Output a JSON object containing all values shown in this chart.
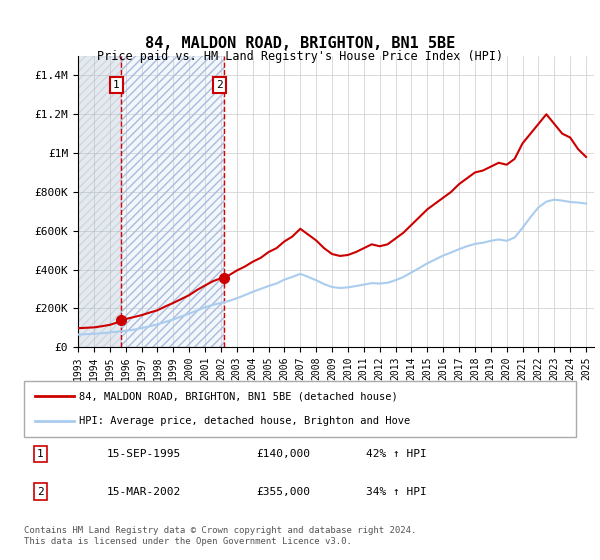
{
  "title": "84, MALDON ROAD, BRIGHTON, BN1 5BE",
  "subtitle": "Price paid vs. HM Land Registry's House Price Index (HPI)",
  "legend_label_red": "84, MALDON ROAD, BRIGHTON, BN1 5BE (detached house)",
  "legend_label_blue": "HPI: Average price, detached house, Brighton and Hove",
  "footnote": "Contains HM Land Registry data © Crown copyright and database right 2024.\nThis data is licensed under the Open Government Licence v3.0.",
  "table": [
    {
      "num": "1",
      "date": "15-SEP-1995",
      "price": "£140,000",
      "hpi": "42% ↑ HPI"
    },
    {
      "num": "2",
      "date": "15-MAR-2002",
      "price": "£355,000",
      "hpi": "34% ↑ HPI"
    }
  ],
  "sale1_year": 1995.71,
  "sale1_price": 140000,
  "sale2_year": 2002.21,
  "sale2_price": 355000,
  "red_color": "#cc0000",
  "blue_color": "#aaccee",
  "hatch_color": "#ccddee",
  "vline_color": "#dd0000",
  "ylim_min": 0,
  "ylim_max": 1500000,
  "xlim_min": 1993,
  "xlim_max": 2025.5,
  "yticks": [
    0,
    200000,
    400000,
    600000,
    800000,
    1000000,
    1200000,
    1400000
  ],
  "ytick_labels": [
    "£0",
    "£200K",
    "£400K",
    "£600K",
    "£800K",
    "£1M",
    "£1.2M",
    "£1.4M"
  ],
  "xticks": [
    1993,
    1994,
    1995,
    1996,
    1997,
    1998,
    1999,
    2000,
    2001,
    2002,
    2003,
    2004,
    2005,
    2006,
    2007,
    2008,
    2009,
    2010,
    2011,
    2012,
    2013,
    2014,
    2015,
    2016,
    2017,
    2018,
    2019,
    2020,
    2021,
    2022,
    2023,
    2024,
    2025
  ],
  "red_x": [
    1993.0,
    1993.5,
    1994.0,
    1994.5,
    1995.0,
    1995.5,
    1995.71,
    1996.0,
    1996.5,
    1997.0,
    1997.5,
    1998.0,
    1998.5,
    1999.0,
    1999.5,
    2000.0,
    2000.5,
    2001.0,
    2001.5,
    2002.0,
    2002.21,
    2002.5,
    2003.0,
    2003.5,
    2004.0,
    2004.5,
    2005.0,
    2005.5,
    2006.0,
    2006.5,
    2007.0,
    2007.5,
    2008.0,
    2008.5,
    2009.0,
    2009.5,
    2010.0,
    2010.5,
    2011.0,
    2011.5,
    2012.0,
    2012.5,
    2013.0,
    2013.5,
    2014.0,
    2014.5,
    2015.0,
    2015.5,
    2016.0,
    2016.5,
    2017.0,
    2017.5,
    2018.0,
    2018.5,
    2019.0,
    2019.5,
    2020.0,
    2020.5,
    2021.0,
    2021.5,
    2022.0,
    2022.5,
    2023.0,
    2023.5,
    2024.0,
    2024.5,
    2025.0
  ],
  "red_y": [
    98000,
    100000,
    102000,
    108000,
    115000,
    128000,
    140000,
    145000,
    155000,
    165000,
    178000,
    190000,
    210000,
    228000,
    248000,
    268000,
    295000,
    318000,
    340000,
    355000,
    355000,
    370000,
    395000,
    415000,
    440000,
    460000,
    490000,
    510000,
    545000,
    570000,
    610000,
    580000,
    550000,
    510000,
    480000,
    470000,
    475000,
    490000,
    510000,
    530000,
    520000,
    530000,
    560000,
    590000,
    630000,
    670000,
    710000,
    740000,
    770000,
    800000,
    840000,
    870000,
    900000,
    910000,
    930000,
    950000,
    940000,
    970000,
    1050000,
    1100000,
    1150000,
    1200000,
    1150000,
    1100000,
    1080000,
    1020000,
    980000
  ],
  "blue_x": [
    1993.0,
    1993.5,
    1994.0,
    1994.5,
    1995.0,
    1995.5,
    1996.0,
    1996.5,
    1997.0,
    1997.5,
    1998.0,
    1998.5,
    1999.0,
    1999.5,
    2000.0,
    2000.5,
    2001.0,
    2001.5,
    2002.0,
    2002.5,
    2003.0,
    2003.5,
    2004.0,
    2004.5,
    2005.0,
    2005.5,
    2006.0,
    2006.5,
    2007.0,
    2007.5,
    2008.0,
    2008.5,
    2009.0,
    2009.5,
    2010.0,
    2010.5,
    2011.0,
    2011.5,
    2012.0,
    2012.5,
    2013.0,
    2013.5,
    2014.0,
    2014.5,
    2015.0,
    2015.5,
    2016.0,
    2016.5,
    2017.0,
    2017.5,
    2018.0,
    2018.5,
    2019.0,
    2019.5,
    2020.0,
    2020.5,
    2021.0,
    2021.5,
    2022.0,
    2022.5,
    2023.0,
    2023.5,
    2024.0,
    2024.5,
    2025.0
  ],
  "blue_y": [
    65000,
    67000,
    69000,
    72000,
    76000,
    80000,
    85000,
    90000,
    98000,
    107000,
    118000,
    130000,
    143000,
    158000,
    173000,
    189000,
    206000,
    218000,
    228000,
    238000,
    252000,
    268000,
    285000,
    300000,
    315000,
    328000,
    348000,
    362000,
    378000,
    362000,
    345000,
    325000,
    310000,
    305000,
    308000,
    315000,
    322000,
    330000,
    328000,
    332000,
    345000,
    362000,
    385000,
    408000,
    432000,
    452000,
    472000,
    488000,
    505000,
    520000,
    532000,
    538000,
    548000,
    555000,
    548000,
    565000,
    615000,
    670000,
    720000,
    750000,
    760000,
    755000,
    748000,
    745000,
    740000
  ]
}
